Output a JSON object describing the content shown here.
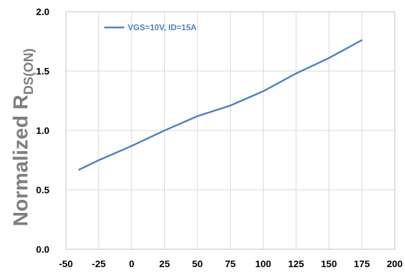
{
  "chart_data": {
    "type": "line",
    "ylabel_main": "Normalized R",
    "ylabel_sub": "DS(ON)",
    "xlabel": "",
    "title": "",
    "xlim": [
      -50,
      200
    ],
    "ylim": [
      0.0,
      2.0
    ],
    "x_ticks": [
      "-50",
      "-25",
      "0",
      "25",
      "50",
      "75",
      "100",
      "125",
      "150",
      "175",
      "200"
    ],
    "y_ticks": [
      "0.0",
      "0.5",
      "1.0",
      "1.5",
      "2.0"
    ],
    "grid": true,
    "legend_position": "top-left",
    "series": [
      {
        "name": "VGS=10V, ID=15A",
        "color": "#4f81bd",
        "x": [
          -40,
          -25,
          0,
          25,
          50,
          75,
          100,
          125,
          150,
          175
        ],
        "y": [
          0.67,
          0.75,
          0.87,
          1.0,
          1.12,
          1.21,
          1.33,
          1.48,
          1.61,
          1.76
        ]
      }
    ]
  }
}
